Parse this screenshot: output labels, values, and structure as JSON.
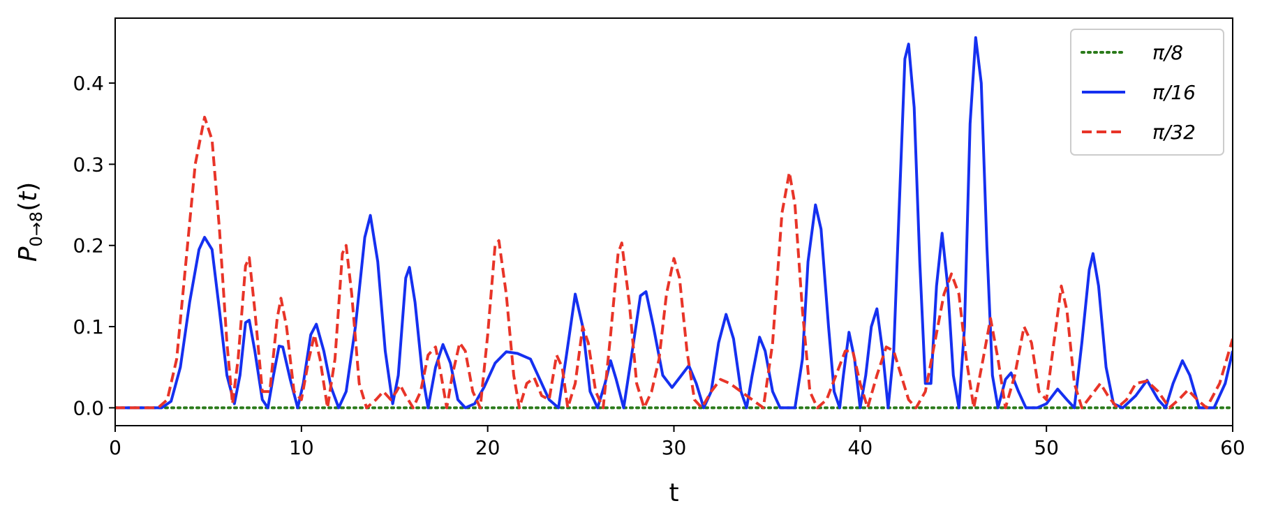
{
  "chart_data": {
    "type": "line",
    "xlabel": "t",
    "ylabel_main": "P",
    "ylabel_sub": "0→8",
    "ylabel_arg": "(",
    "ylabel_var": "t",
    "ylabel_close": ")",
    "xlim": [
      0,
      60
    ],
    "ylim": [
      -0.022,
      0.48
    ],
    "xticks": [
      0,
      10,
      20,
      30,
      40,
      50,
      60
    ],
    "xtick_labels": [
      "0",
      "10",
      "20",
      "30",
      "40",
      "50",
      "60"
    ],
    "yticks": [
      0.0,
      0.1,
      0.2,
      0.3,
      0.4
    ],
    "ytick_labels": [
      "0.0",
      "0.1",
      "0.2",
      "0.3",
      "0.4"
    ],
    "grid": false,
    "legend_position": "top-right",
    "series": [
      {
        "name": "π/8",
        "color": "#2a7a1a",
        "style": "dotted",
        "points": [
          [
            0,
            0
          ],
          [
            60,
            0
          ]
        ]
      },
      {
        "name": "π/16",
        "color": "#1530f0",
        "style": "solid",
        "points": [
          [
            0,
            0
          ],
          [
            2.5,
            0
          ],
          [
            3.0,
            0.008
          ],
          [
            3.5,
            0.05
          ],
          [
            4.0,
            0.13
          ],
          [
            4.5,
            0.195
          ],
          [
            4.8,
            0.21
          ],
          [
            5.2,
            0.195
          ],
          [
            5.6,
            0.12
          ],
          [
            6.0,
            0.04
          ],
          [
            6.4,
            0.005
          ],
          [
            6.7,
            0.04
          ],
          [
            7.0,
            0.105
          ],
          [
            7.2,
            0.108
          ],
          [
            7.5,
            0.07
          ],
          [
            7.9,
            0.01
          ],
          [
            8.2,
            0.0
          ],
          [
            8.5,
            0.04
          ],
          [
            8.8,
            0.076
          ],
          [
            9.0,
            0.075
          ],
          [
            9.4,
            0.035
          ],
          [
            9.8,
            0.0
          ],
          [
            10.1,
            0.03
          ],
          [
            10.5,
            0.09
          ],
          [
            10.8,
            0.103
          ],
          [
            11.2,
            0.07
          ],
          [
            11.6,
            0.025
          ],
          [
            12.0,
            0.0
          ],
          [
            12.4,
            0.02
          ],
          [
            12.9,
            0.1
          ],
          [
            13.4,
            0.21
          ],
          [
            13.7,
            0.237
          ],
          [
            14.1,
            0.18
          ],
          [
            14.5,
            0.07
          ],
          [
            14.9,
            0.005
          ],
          [
            15.2,
            0.04
          ],
          [
            15.6,
            0.16
          ],
          [
            15.8,
            0.173
          ],
          [
            16.1,
            0.13
          ],
          [
            16.5,
            0.04
          ],
          [
            16.8,
            0.0
          ],
          [
            17.2,
            0.05
          ],
          [
            17.6,
            0.078
          ],
          [
            18.0,
            0.055
          ],
          [
            18.4,
            0.01
          ],
          [
            18.8,
            0.0
          ],
          [
            19.3,
            0.005
          ],
          [
            19.8,
            0.025
          ],
          [
            20.4,
            0.055
          ],
          [
            21.0,
            0.069
          ],
          [
            21.6,
            0.067
          ],
          [
            22.3,
            0.06
          ],
          [
            22.8,
            0.035
          ],
          [
            23.3,
            0.01
          ],
          [
            23.8,
            0.0
          ],
          [
            24.2,
            0.06
          ],
          [
            24.7,
            0.14
          ],
          [
            25.1,
            0.1
          ],
          [
            25.5,
            0.02
          ],
          [
            25.9,
            0.0
          ],
          [
            26.3,
            0.03
          ],
          [
            26.6,
            0.058
          ],
          [
            26.9,
            0.035
          ],
          [
            27.3,
            0.0
          ],
          [
            27.7,
            0.06
          ],
          [
            28.2,
            0.138
          ],
          [
            28.5,
            0.143
          ],
          [
            28.9,
            0.1
          ],
          [
            29.4,
            0.04
          ],
          [
            29.9,
            0.025
          ],
          [
            30.4,
            0.04
          ],
          [
            30.8,
            0.052
          ],
          [
            31.2,
            0.03
          ],
          [
            31.6,
            0.0
          ],
          [
            32.0,
            0.02
          ],
          [
            32.4,
            0.08
          ],
          [
            32.8,
            0.115
          ],
          [
            33.2,
            0.085
          ],
          [
            33.6,
            0.02
          ],
          [
            33.9,
            0.0
          ],
          [
            34.2,
            0.04
          ],
          [
            34.6,
            0.087
          ],
          [
            34.9,
            0.07
          ],
          [
            35.3,
            0.02
          ],
          [
            35.7,
            0.0
          ],
          [
            36.5,
            0.0
          ],
          [
            36.9,
            0.06
          ],
          [
            37.2,
            0.18
          ],
          [
            37.6,
            0.25
          ],
          [
            37.9,
            0.22
          ],
          [
            38.3,
            0.1
          ],
          [
            38.6,
            0.02
          ],
          [
            38.9,
            0.0
          ],
          [
            39.1,
            0.04
          ],
          [
            39.4,
            0.093
          ],
          [
            39.7,
            0.06
          ],
          [
            40.0,
            0.0
          ],
          [
            40.3,
            0.04
          ],
          [
            40.6,
            0.1
          ],
          [
            40.9,
            0.122
          ],
          [
            41.2,
            0.07
          ],
          [
            41.5,
            0.0
          ],
          [
            41.8,
            0.07
          ],
          [
            42.1,
            0.25
          ],
          [
            42.4,
            0.43
          ],
          [
            42.6,
            0.448
          ],
          [
            42.9,
            0.37
          ],
          [
            43.2,
            0.18
          ],
          [
            43.5,
            0.03
          ],
          [
            43.8,
            0.03
          ],
          [
            44.1,
            0.15
          ],
          [
            44.4,
            0.215
          ],
          [
            44.7,
            0.15
          ],
          [
            45.0,
            0.04
          ],
          [
            45.3,
            0.0
          ],
          [
            45.6,
            0.1
          ],
          [
            45.9,
            0.35
          ],
          [
            46.2,
            0.456
          ],
          [
            46.5,
            0.4
          ],
          [
            46.8,
            0.2
          ],
          [
            47.1,
            0.04
          ],
          [
            47.4,
            0.0
          ],
          [
            47.8,
            0.035
          ],
          [
            48.1,
            0.043
          ],
          [
            48.5,
            0.02
          ],
          [
            48.9,
            0.0
          ],
          [
            49.5,
            0.0
          ],
          [
            50.0,
            0.005
          ],
          [
            50.6,
            0.023
          ],
          [
            51.1,
            0.01
          ],
          [
            51.5,
            0.0
          ],
          [
            51.9,
            0.08
          ],
          [
            52.3,
            0.17
          ],
          [
            52.5,
            0.19
          ],
          [
            52.8,
            0.15
          ],
          [
            53.2,
            0.05
          ],
          [
            53.6,
            0.005
          ],
          [
            54.1,
            0.0
          ],
          [
            54.8,
            0.015
          ],
          [
            55.4,
            0.034
          ],
          [
            56.0,
            0.01
          ],
          [
            56.4,
            0.0
          ],
          [
            56.8,
            0.03
          ],
          [
            57.3,
            0.058
          ],
          [
            57.7,
            0.04
          ],
          [
            58.2,
            0.0
          ],
          [
            59.0,
            0.0
          ],
          [
            59.6,
            0.03
          ],
          [
            60.0,
            0.07
          ]
        ]
      },
      {
        "name": "π/32",
        "color": "#e83428",
        "style": "dashed",
        "points": [
          [
            0,
            0
          ],
          [
            2.3,
            0
          ],
          [
            2.8,
            0.01
          ],
          [
            3.3,
            0.06
          ],
          [
            3.8,
            0.18
          ],
          [
            4.3,
            0.3
          ],
          [
            4.8,
            0.358
          ],
          [
            5.2,
            0.33
          ],
          [
            5.6,
            0.22
          ],
          [
            6.0,
            0.08
          ],
          [
            6.3,
            0.005
          ],
          [
            6.6,
            0.06
          ],
          [
            7.0,
            0.175
          ],
          [
            7.2,
            0.185
          ],
          [
            7.5,
            0.12
          ],
          [
            7.9,
            0.02
          ],
          [
            8.3,
            0.02
          ],
          [
            8.7,
            0.11
          ],
          [
            8.9,
            0.135
          ],
          [
            9.2,
            0.1
          ],
          [
            9.6,
            0.02
          ],
          [
            10.0,
            0.01
          ],
          [
            10.4,
            0.06
          ],
          [
            10.7,
            0.09
          ],
          [
            11.0,
            0.06
          ],
          [
            11.4,
            0.0
          ],
          [
            11.8,
            0.06
          ],
          [
            12.2,
            0.19
          ],
          [
            12.4,
            0.2
          ],
          [
            12.7,
            0.14
          ],
          [
            13.1,
            0.03
          ],
          [
            13.5,
            0.0
          ],
          [
            14.0,
            0.01
          ],
          [
            14.4,
            0.02
          ],
          [
            14.8,
            0.01
          ],
          [
            15.1,
            0.02
          ],
          [
            15.3,
            0.028
          ],
          [
            15.6,
            0.015
          ],
          [
            16.0,
            0.0
          ],
          [
            16.4,
            0.02
          ],
          [
            16.8,
            0.065
          ],
          [
            17.2,
            0.075
          ],
          [
            17.5,
            0.04
          ],
          [
            17.8,
            0.0
          ],
          [
            18.1,
            0.04
          ],
          [
            18.5,
            0.08
          ],
          [
            18.8,
            0.07
          ],
          [
            19.2,
            0.02
          ],
          [
            19.6,
            0.0
          ],
          [
            20.0,
            0.09
          ],
          [
            20.4,
            0.2
          ],
          [
            20.6,
            0.206
          ],
          [
            21.0,
            0.14
          ],
          [
            21.4,
            0.04
          ],
          [
            21.7,
            0.0
          ],
          [
            22.1,
            0.03
          ],
          [
            22.5,
            0.037
          ],
          [
            22.9,
            0.015
          ],
          [
            23.3,
            0.01
          ],
          [
            23.7,
            0.065
          ],
          [
            24.0,
            0.05
          ],
          [
            24.3,
            0.0
          ],
          [
            24.7,
            0.03
          ],
          [
            25.1,
            0.1
          ],
          [
            25.4,
            0.08
          ],
          [
            25.8,
            0.02
          ],
          [
            26.2,
            0.0
          ],
          [
            26.6,
            0.09
          ],
          [
            27.0,
            0.19
          ],
          [
            27.2,
            0.203
          ],
          [
            27.6,
            0.13
          ],
          [
            28.0,
            0.03
          ],
          [
            28.4,
            0.0
          ],
          [
            28.8,
            0.02
          ],
          [
            29.2,
            0.06
          ],
          [
            29.6,
            0.14
          ],
          [
            30.0,
            0.184
          ],
          [
            30.3,
            0.16
          ],
          [
            30.7,
            0.07
          ],
          [
            31.1,
            0.01
          ],
          [
            31.5,
            0.0
          ],
          [
            32.0,
            0.02
          ],
          [
            32.5,
            0.035
          ],
          [
            33.0,
            0.03
          ],
          [
            33.6,
            0.02
          ],
          [
            34.2,
            0.01
          ],
          [
            34.8,
            0.0
          ],
          [
            35.3,
            0.08
          ],
          [
            35.8,
            0.24
          ],
          [
            36.2,
            0.29
          ],
          [
            36.5,
            0.25
          ],
          [
            36.9,
            0.12
          ],
          [
            37.3,
            0.02
          ],
          [
            37.7,
            0.0
          ],
          [
            38.2,
            0.01
          ],
          [
            38.7,
            0.04
          ],
          [
            39.2,
            0.07
          ],
          [
            39.6,
            0.07
          ],
          [
            40.0,
            0.03
          ],
          [
            40.4,
            0.0
          ],
          [
            40.9,
            0.04
          ],
          [
            41.4,
            0.075
          ],
          [
            41.8,
            0.07
          ],
          [
            42.2,
            0.04
          ],
          [
            42.6,
            0.01
          ],
          [
            43.0,
            0.0
          ],
          [
            43.5,
            0.02
          ],
          [
            44.0,
            0.08
          ],
          [
            44.5,
            0.14
          ],
          [
            44.9,
            0.165
          ],
          [
            45.3,
            0.14
          ],
          [
            45.7,
            0.06
          ],
          [
            46.1,
            0.0
          ],
          [
            46.6,
            0.06
          ],
          [
            47.0,
            0.11
          ],
          [
            47.4,
            0.06
          ],
          [
            47.8,
            0.0
          ],
          [
            48.3,
            0.04
          ],
          [
            48.8,
            0.1
          ],
          [
            49.2,
            0.08
          ],
          [
            49.6,
            0.02
          ],
          [
            50.0,
            0.01
          ],
          [
            50.4,
            0.08
          ],
          [
            50.8,
            0.15
          ],
          [
            51.1,
            0.12
          ],
          [
            51.5,
            0.03
          ],
          [
            51.9,
            0.0
          ],
          [
            52.4,
            0.015
          ],
          [
            52.9,
            0.03
          ],
          [
            53.3,
            0.015
          ],
          [
            53.8,
            0.0
          ],
          [
            54.3,
            0.01
          ],
          [
            54.8,
            0.03
          ],
          [
            55.4,
            0.033
          ],
          [
            56.0,
            0.02
          ],
          [
            56.6,
            0.0
          ],
          [
            57.1,
            0.01
          ],
          [
            57.6,
            0.022
          ],
          [
            58.1,
            0.01
          ],
          [
            58.6,
            0.0
          ],
          [
            59.3,
            0.03
          ],
          [
            60.0,
            0.085
          ]
        ]
      }
    ]
  }
}
